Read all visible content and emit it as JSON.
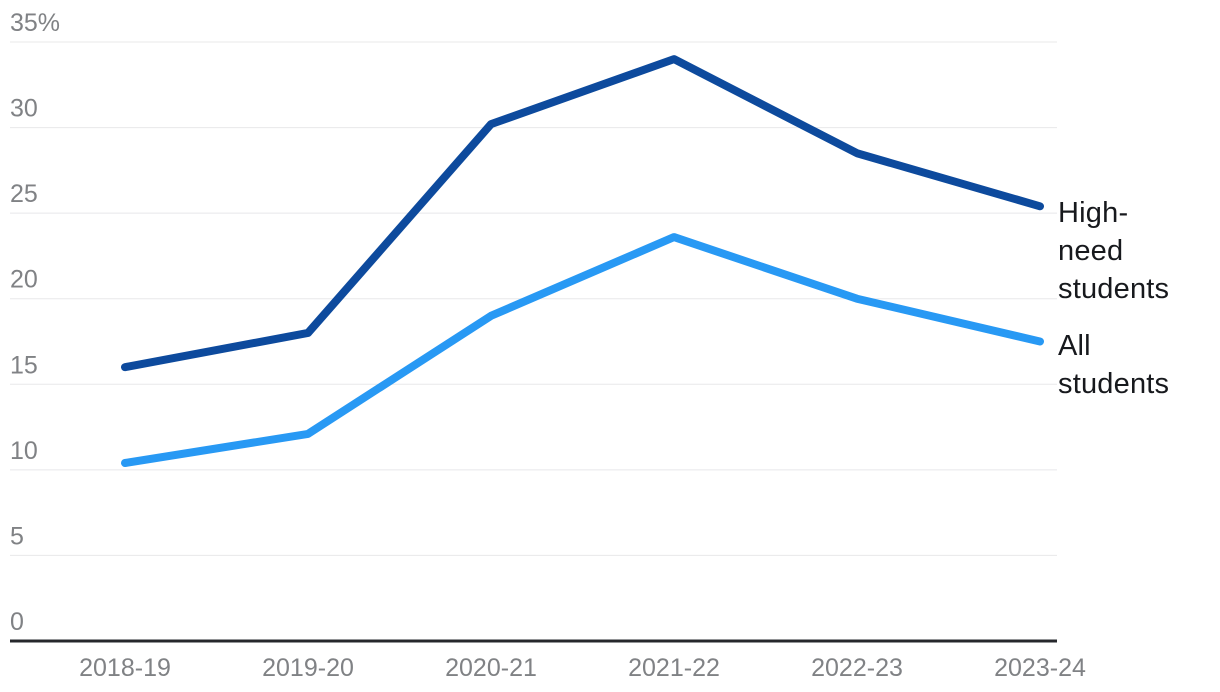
{
  "chart_data": {
    "type": "line",
    "title": "",
    "xlabel": "",
    "ylabel": "",
    "categories": [
      "2018-19",
      "2019-20",
      "2020-21",
      "2021-22",
      "2022-23",
      "2023-24"
    ],
    "series": [
      {
        "name": "High-need students",
        "color": "#0d4a9d",
        "values": [
          16,
          18,
          30.2,
          34,
          28.5,
          25.4
        ]
      },
      {
        "name": "All students",
        "color": "#2899f4",
        "values": [
          10.4,
          12.1,
          19,
          23.6,
          20,
          17.5
        ]
      }
    ],
    "ylim": [
      0,
      35
    ],
    "yticks": [
      0,
      5,
      10,
      15,
      20,
      25,
      30,
      35
    ],
    "ytick_labels": [
      "0",
      "5",
      "10",
      "15",
      "20",
      "25",
      "30",
      "35%"
    ],
    "unit": "%",
    "grid": true,
    "legend_position": "right of line ends",
    "line_width": 8
  },
  "colors": {
    "background": "#ffffff",
    "grid_line": "#e8e8ea",
    "axis_line": "#26282c",
    "tick_label": "#808285",
    "series_label_text": "#17191d"
  }
}
